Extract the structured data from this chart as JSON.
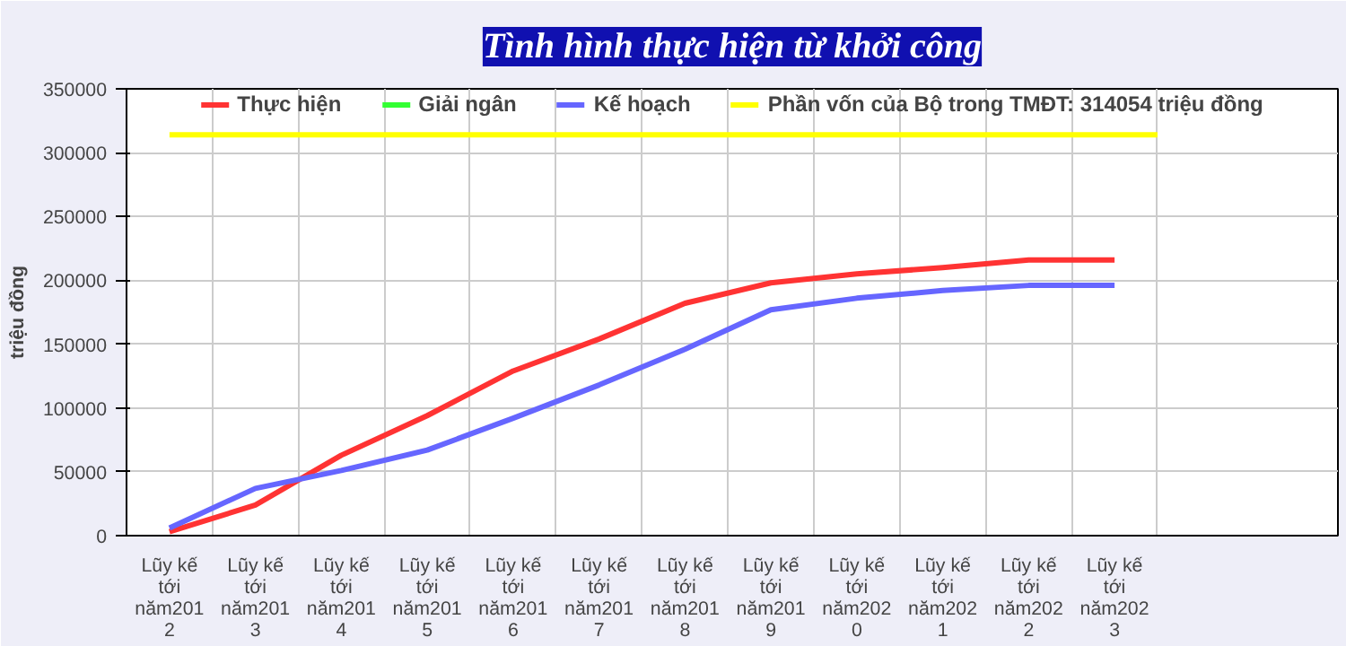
{
  "chart_data": {
    "type": "line",
    "title": "Tình hình thực hiện từ khởi công",
    "ylabel": "triệu đồng",
    "categories": [
      "Lũy kế tới năm2012",
      "Lũy kế tới năm2013",
      "Lũy kế tới năm2014",
      "Lũy kế tới năm2015",
      "Lũy kế tới năm2016",
      "Lũy kế tới năm2017",
      "Lũy kế tới năm2018",
      "Lũy kế tới năm2019",
      "Lũy kế tới năm2020",
      "Lũy kế tới năm2021",
      "Lũy kế tới năm2022",
      "Lũy kế tới năm2023"
    ],
    "series": [
      {
        "name": "Thực hiện",
        "color": "#ff3333",
        "values": [
          3000,
          24000,
          63000,
          94000,
          129000,
          154000,
          182000,
          198000,
          205000,
          210000,
          216000,
          216000
        ]
      },
      {
        "name": "Giải ngân",
        "color": "#33ff33",
        "values": [
          null,
          null,
          null,
          null,
          null,
          null,
          null,
          null,
          null,
          null,
          null,
          null
        ]
      },
      {
        "name": "Kế hoạch",
        "color": "#6666ff",
        "values": [
          6000,
          37000,
          51000,
          67000,
          92000,
          118000,
          146000,
          177000,
          186000,
          192000,
          196000,
          196000
        ]
      }
    ],
    "ref_lines": [
      {
        "axis": "y",
        "value": 314054,
        "label": "Phần vốn của Bộ trong TMĐT: 314054 triệu đồng",
        "color": "#ffff00"
      }
    ],
    "ylim": [
      0,
      350000
    ],
    "yticks": [
      0,
      50000,
      100000,
      150000,
      200000,
      250000,
      300000,
      350000
    ],
    "grid": true,
    "legend": "top",
    "marker": "none",
    "line_style": "solid"
  }
}
